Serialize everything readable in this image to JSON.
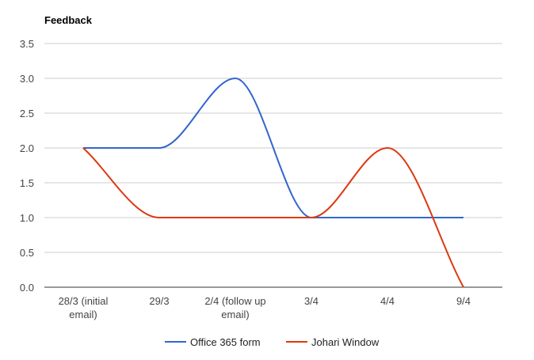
{
  "chart_data": {
    "type": "line",
    "title": "Feedback",
    "categories": [
      [
        "28/3 (initial",
        "email)"
      ],
      [
        "29/3"
      ],
      [
        "2/4 (follow up",
        "email)"
      ],
      [
        "3/4"
      ],
      [
        "4/4"
      ],
      [
        "9/4"
      ]
    ],
    "y_ticks": [
      "0.0",
      "0.5",
      "1.0",
      "1.5",
      "2.0",
      "2.5",
      "3.0",
      "3.5"
    ],
    "ylim": [
      0,
      3.5
    ],
    "grid": "horizontal",
    "smooth": true,
    "legend_position": "bottom",
    "series": [
      {
        "name": "Office 365 form",
        "color": "#3366cc",
        "values": [
          2,
          2,
          3,
          1,
          1,
          1
        ]
      },
      {
        "name": "Johari Window",
        "color": "#dc3912",
        "values": [
          2,
          1,
          1,
          1,
          2,
          0
        ]
      }
    ]
  }
}
